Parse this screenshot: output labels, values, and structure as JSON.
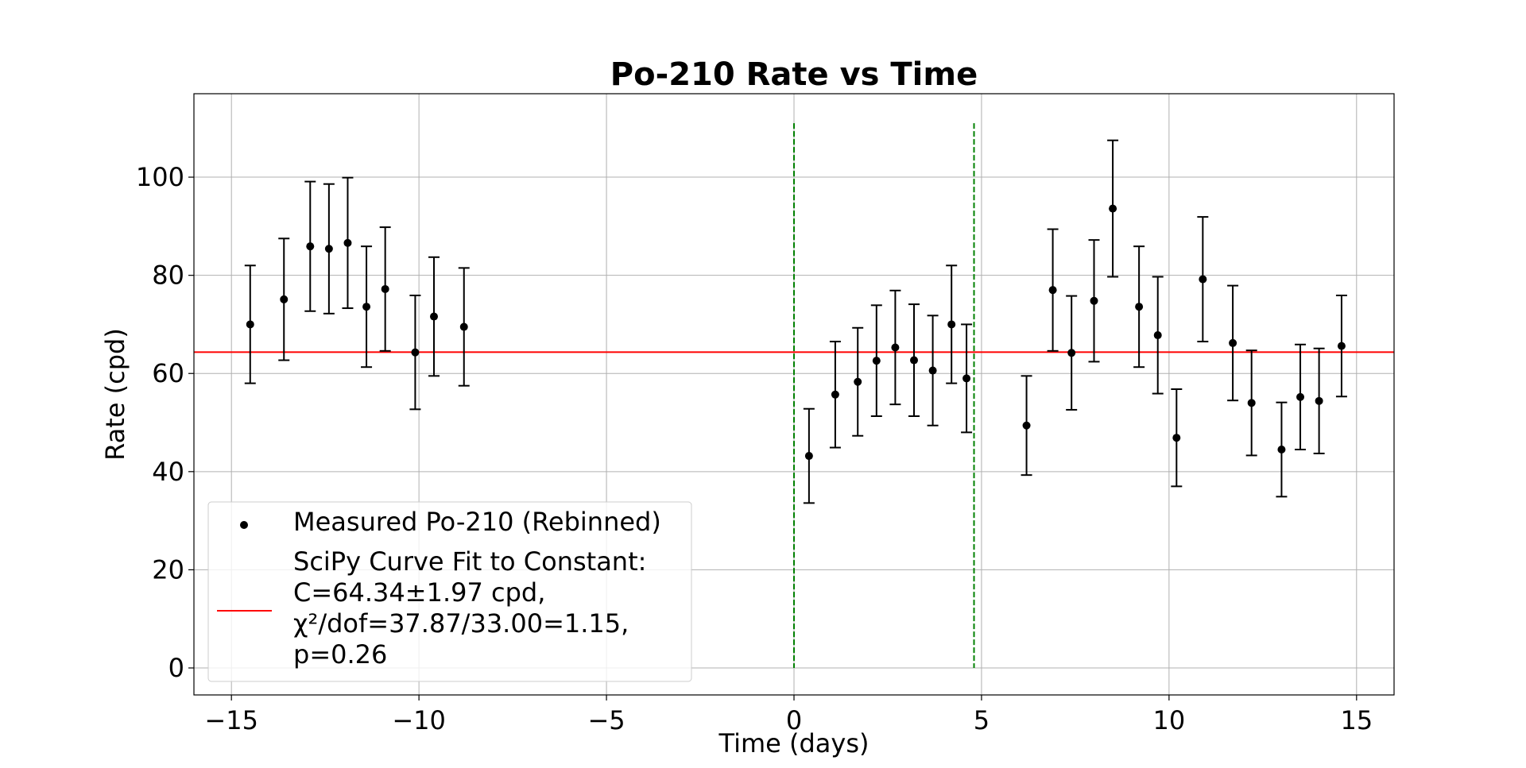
{
  "chart_data": {
    "type": "scatter",
    "title": "Po-210 Rate vs Time",
    "xlabel": "Time (days)",
    "ylabel": "Rate (cpd)",
    "xlim": [
      -16,
      16
    ],
    "ylim": [
      -5.5,
      117
    ],
    "x_ticks": [
      -15,
      -10,
      -5,
      0,
      5,
      10,
      15
    ],
    "x_tick_labels": [
      "−15",
      "−10",
      "−5",
      "0",
      "5",
      "10",
      "15"
    ],
    "y_ticks": [
      0,
      20,
      40,
      60,
      80,
      100
    ],
    "y_tick_labels": [
      "0",
      "20",
      "40",
      "60",
      "80",
      "100"
    ],
    "grid": true,
    "legend_position": "lower-left",
    "colors": {
      "points": "#000000",
      "fit_line": "#ff0000",
      "vlines": "#008000",
      "grid": "#b0b0b0"
    },
    "series": [
      {
        "name": "Measured Po-210 (Rebinned)",
        "kind": "errorbar",
        "x": [
          -14.5,
          -13.6,
          -12.9,
          -12.4,
          -11.9,
          -11.4,
          -10.9,
          -10.1,
          -9.6,
          -8.8,
          0.4,
          1.1,
          1.7,
          2.2,
          2.7,
          3.2,
          3.7,
          4.2,
          4.6,
          6.2,
          6.9,
          7.4,
          8.0,
          8.5,
          9.2,
          9.7,
          10.2,
          10.9,
          11.7,
          12.2,
          13.0,
          13.5,
          14.0,
          14.6
        ],
        "y": [
          70.0,
          75.1,
          85.9,
          85.4,
          86.6,
          73.6,
          77.2,
          64.3,
          71.6,
          69.5,
          43.2,
          55.7,
          58.3,
          62.6,
          65.3,
          62.7,
          60.6,
          70.0,
          59.0,
          49.4,
          77.0,
          64.2,
          74.8,
          93.6,
          73.6,
          67.8,
          46.9,
          79.2,
          66.2,
          54.0,
          44.5,
          55.2,
          54.4,
          65.6
        ],
        "yerr": [
          12.0,
          12.4,
          13.2,
          13.2,
          13.3,
          12.3,
          12.6,
          11.6,
          12.1,
          12.0,
          9.6,
          10.8,
          11.0,
          11.3,
          11.6,
          11.4,
          11.2,
          12.0,
          11.0,
          10.1,
          12.4,
          11.6,
          12.4,
          13.9,
          12.3,
          11.9,
          9.9,
          12.7,
          11.7,
          10.7,
          9.6,
          10.7,
          10.7,
          10.3
        ]
      },
      {
        "name": "SciPy Curve Fit to Constant:\nC=64.34±1.97 cpd,\nχ²/dof=37.87/33.00=1.15,\np=0.26",
        "kind": "hline",
        "y": 64.34
      }
    ],
    "vlines": [
      0.0,
      4.8
    ],
    "legend": {
      "entries": [
        {
          "marker": "dot",
          "lines": [
            "Measured Po-210 (Rebinned)"
          ]
        },
        {
          "marker": "line",
          "lines": [
            "SciPy Curve Fit to Constant:",
            "C=64.34±1.97 cpd,",
            "χ²/dof=37.87/33.00=1.15,",
            "p=0.26"
          ]
        }
      ]
    }
  }
}
